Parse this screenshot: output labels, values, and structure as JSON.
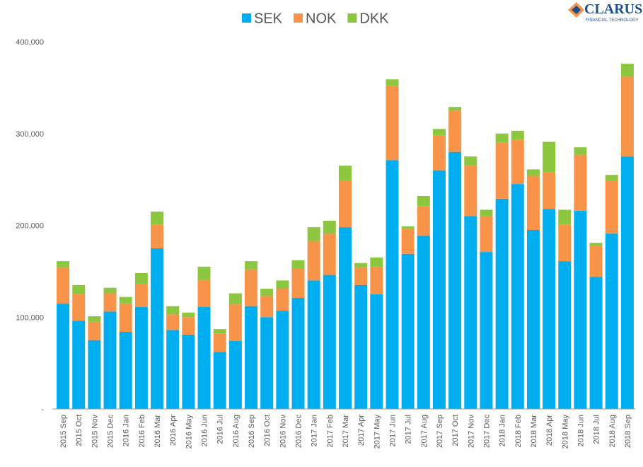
{
  "chart_data": {
    "type": "bar",
    "stacked": true,
    "categories": [
      "2015 Sep",
      "2015 Oct",
      "2015 Nov",
      "2015 Dec",
      "2016 Jan",
      "2016 Feb",
      "2016 Mar",
      "2016 Apr",
      "2016 May",
      "2016 Jun",
      "2016 Jul",
      "2016 Aug",
      "2016 Sep",
      "2016 Oct",
      "2016 Nov",
      "2016 Dec",
      "2017 Jan",
      "2017 Feb",
      "2017 Mar",
      "2017 Apr",
      "2017 May",
      "2017 Jun",
      "2017 Jul",
      "2017 Aug",
      "2017 Sep",
      "2017 Oct",
      "2017 Nov",
      "2017 Dec",
      "2018 Jan",
      "2018 Feb",
      "2018 Mar",
      "2018 Apr",
      "2018 May",
      "2018 Jun",
      "2018 Jul",
      "2018 Aug",
      "2018 Sep"
    ],
    "series": [
      {
        "name": "SEK",
        "color": "#00aeef",
        "values": [
          115000,
          96000,
          75000,
          106000,
          84000,
          111000,
          175000,
          86000,
          81000,
          111000,
          62000,
          74000,
          112000,
          100000,
          107000,
          121000,
          140000,
          146000,
          198000,
          135000,
          125000,
          271000,
          169000,
          189000,
          260000,
          280000,
          210000,
          171000,
          229000,
          245000,
          195000,
          218000,
          161000,
          216000,
          144000,
          191000,
          275000
        ]
      },
      {
        "name": "NOK",
        "color": "#f7944a",
        "values": [
          39000,
          29000,
          20000,
          20000,
          31000,
          25000,
          26000,
          17000,
          19000,
          30000,
          20000,
          40000,
          40000,
          23000,
          24000,
          32000,
          43000,
          45000,
          51000,
          19000,
          30000,
          81000,
          27000,
          32000,
          38000,
          45000,
          55000,
          39000,
          61000,
          48000,
          59000,
          40000,
          40000,
          61000,
          34000,
          58000,
          87000
        ]
      },
      {
        "name": "DKK",
        "color": "#8dc63f",
        "values": [
          7000,
          10000,
          6000,
          6000,
          7000,
          12000,
          14000,
          9000,
          5000,
          14000,
          5000,
          12000,
          9000,
          8000,
          9000,
          9000,
          15000,
          14000,
          16000,
          5000,
          10000,
          7000,
          3000,
          11000,
          7000,
          4000,
          10000,
          7000,
          10000,
          10000,
          7000,
          33000,
          16000,
          8000,
          3000,
          6000,
          14000
        ]
      }
    ],
    "ylim": [
      0,
      400000
    ],
    "yticks": [
      {
        "value": 0,
        "label": "-"
      },
      {
        "value": 100000,
        "label": "100,000"
      },
      {
        "value": 200000,
        "label": "200,000"
      },
      {
        "value": 300000,
        "label": "300,000"
      },
      {
        "value": 400000,
        "label": "400,000"
      }
    ],
    "grid": false,
    "legend": "top"
  },
  "logo": {
    "name": "CLARUS",
    "tagline": "FINANCIAL TECHNOLOGY"
  }
}
